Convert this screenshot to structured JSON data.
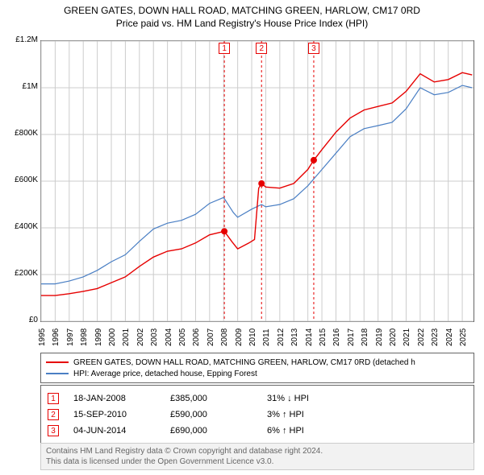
{
  "title": "GREEN GATES, DOWN HALL ROAD, MATCHING GREEN, HARLOW, CM17 0RD",
  "subtitle": "Price paid vs. HM Land Registry's House Price Index (HPI)",
  "chart": {
    "type": "line",
    "background_color": "#ffffff",
    "grid_color": "#cccccc",
    "border_color": "#666666",
    "xlim": [
      1995,
      2025.8
    ],
    "ylim": [
      0,
      1200000
    ],
    "yticks": [
      0,
      200000,
      400000,
      600000,
      800000,
      1000000,
      1200000
    ],
    "ytick_labels": [
      "£0",
      "£200K",
      "£400K",
      "£600K",
      "£800K",
      "£1M",
      "£1.2M"
    ],
    "xticks": [
      1995,
      1996,
      1997,
      1998,
      1999,
      2000,
      2001,
      2002,
      2003,
      2004,
      2005,
      2006,
      2007,
      2008,
      2009,
      2010,
      2011,
      2012,
      2013,
      2014,
      2015,
      2016,
      2017,
      2018,
      2019,
      2020,
      2021,
      2022,
      2023,
      2024,
      2025
    ],
    "tick_fontsize": 10,
    "series": [
      {
        "name": "property",
        "label": "GREEN GATES, DOWN HALL ROAD, MATCHING GREEN, HARLOW, CM17 0RD (detached h",
        "color": "#e60000",
        "line_width": 1.4,
        "data": [
          [
            1995,
            110000
          ],
          [
            1996,
            110000
          ],
          [
            1997,
            118000
          ],
          [
            1998,
            128000
          ],
          [
            1999,
            140000
          ],
          [
            2000,
            165000
          ],
          [
            2001,
            190000
          ],
          [
            2002,
            235000
          ],
          [
            2003,
            275000
          ],
          [
            2004,
            300000
          ],
          [
            2005,
            310000
          ],
          [
            2006,
            335000
          ],
          [
            2007,
            370000
          ],
          [
            2008.05,
            385000
          ],
          [
            2008.6,
            340000
          ],
          [
            2009,
            310000
          ],
          [
            2009.8,
            335000
          ],
          [
            2010.2,
            350000
          ],
          [
            2010.5,
            570000
          ],
          [
            2010.7,
            590000
          ],
          [
            2011,
            575000
          ],
          [
            2012,
            570000
          ],
          [
            2013,
            590000
          ],
          [
            2014,
            650000
          ],
          [
            2014.42,
            690000
          ],
          [
            2015,
            735000
          ],
          [
            2016,
            810000
          ],
          [
            2017,
            870000
          ],
          [
            2018,
            905000
          ],
          [
            2019,
            920000
          ],
          [
            2020,
            935000
          ],
          [
            2021,
            985000
          ],
          [
            2022,
            1060000
          ],
          [
            2023,
            1025000
          ],
          [
            2024,
            1035000
          ],
          [
            2025,
            1065000
          ],
          [
            2025.7,
            1055000
          ]
        ]
      },
      {
        "name": "hpi",
        "label": "HPI: Average price, detached house, Epping Forest",
        "color": "#4a7fc4",
        "line_width": 1.2,
        "data": [
          [
            1995,
            160000
          ],
          [
            1996,
            160000
          ],
          [
            1997,
            172000
          ],
          [
            1998,
            190000
          ],
          [
            1999,
            218000
          ],
          [
            2000,
            255000
          ],
          [
            2001,
            285000
          ],
          [
            2002,
            342000
          ],
          [
            2003,
            395000
          ],
          [
            2004,
            420000
          ],
          [
            2005,
            432000
          ],
          [
            2006,
            458000
          ],
          [
            2007,
            505000
          ],
          [
            2008,
            530000
          ],
          [
            2008.7,
            465000
          ],
          [
            2009,
            445000
          ],
          [
            2010,
            480000
          ],
          [
            2010.7,
            500000
          ],
          [
            2011,
            490000
          ],
          [
            2012,
            500000
          ],
          [
            2013,
            525000
          ],
          [
            2014,
            580000
          ],
          [
            2015,
            650000
          ],
          [
            2016,
            720000
          ],
          [
            2017,
            790000
          ],
          [
            2018,
            825000
          ],
          [
            2019,
            838000
          ],
          [
            2020,
            852000
          ],
          [
            2021,
            910000
          ],
          [
            2022,
            1000000
          ],
          [
            2023,
            970000
          ],
          [
            2024,
            980000
          ],
          [
            2025,
            1010000
          ],
          [
            2025.7,
            1000000
          ]
        ]
      }
    ],
    "marker_points": [
      {
        "n": "1",
        "x": 2008.05,
        "y": 385000,
        "color": "#e60000"
      },
      {
        "n": "2",
        "x": 2010.7,
        "y": 590000,
        "color": "#e60000"
      },
      {
        "n": "3",
        "x": 2014.42,
        "y": 690000,
        "color": "#e60000"
      }
    ],
    "marker_vline_color": "#e60000",
    "marker_vline_dash": "3,3"
  },
  "legend": {
    "items": [
      {
        "color": "#e60000",
        "label": "GREEN GATES, DOWN HALL ROAD, MATCHING GREEN, HARLOW, CM17 0RD (detached h"
      },
      {
        "color": "#4a7fc4",
        "label": "HPI: Average price, detached house, Epping Forest"
      }
    ]
  },
  "points_table": {
    "rows": [
      {
        "n": "1",
        "date": "18-JAN-2008",
        "price": "£385,000",
        "delta": "31% ↓ HPI",
        "color": "#e60000"
      },
      {
        "n": "2",
        "date": "15-SEP-2010",
        "price": "£590,000",
        "delta": "3% ↑ HPI",
        "color": "#e60000"
      },
      {
        "n": "3",
        "date": "04-JUN-2014",
        "price": "£690,000",
        "delta": "6% ↑ HPI",
        "color": "#e60000"
      }
    ]
  },
  "footer": {
    "line1": "Contains HM Land Registry data © Crown copyright and database right 2024.",
    "line2": "This data is licensed under the Open Government Licence v3.0."
  }
}
